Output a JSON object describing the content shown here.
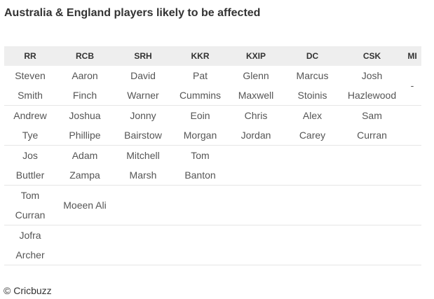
{
  "title": "Australia & England players likely to be affected",
  "table": {
    "header": [
      "RR",
      "RCB",
      "SRH",
      "KKR",
      "KXIP",
      "DC",
      "CSK",
      "MI"
    ],
    "rows": [
      [
        "Steven Smith",
        "Aaron Finch",
        "David Warner",
        "Pat Cummins",
        "Glenn Maxwell",
        "Marcus Stoinis",
        "Josh Hazlewood",
        "-"
      ],
      [
        "Andrew Tye",
        "Joshua Phillipe",
        "Jonny Bairstow",
        "Eoin Morgan",
        "Chris Jordan",
        "Alex Carey",
        "Sam Curran",
        null
      ],
      [
        "Jos Buttler",
        "Adam Zampa",
        "Mitchell Marsh",
        "Tom Banton",
        null,
        null,
        null,
        null
      ],
      [
        "Tom Curran",
        "Moeen Ali",
        null,
        null,
        null,
        null,
        null,
        null
      ],
      [
        "Jofra Archer",
        null,
        null,
        null,
        null,
        null,
        null,
        null
      ]
    ]
  },
  "footer": "© Cricbuzz"
}
